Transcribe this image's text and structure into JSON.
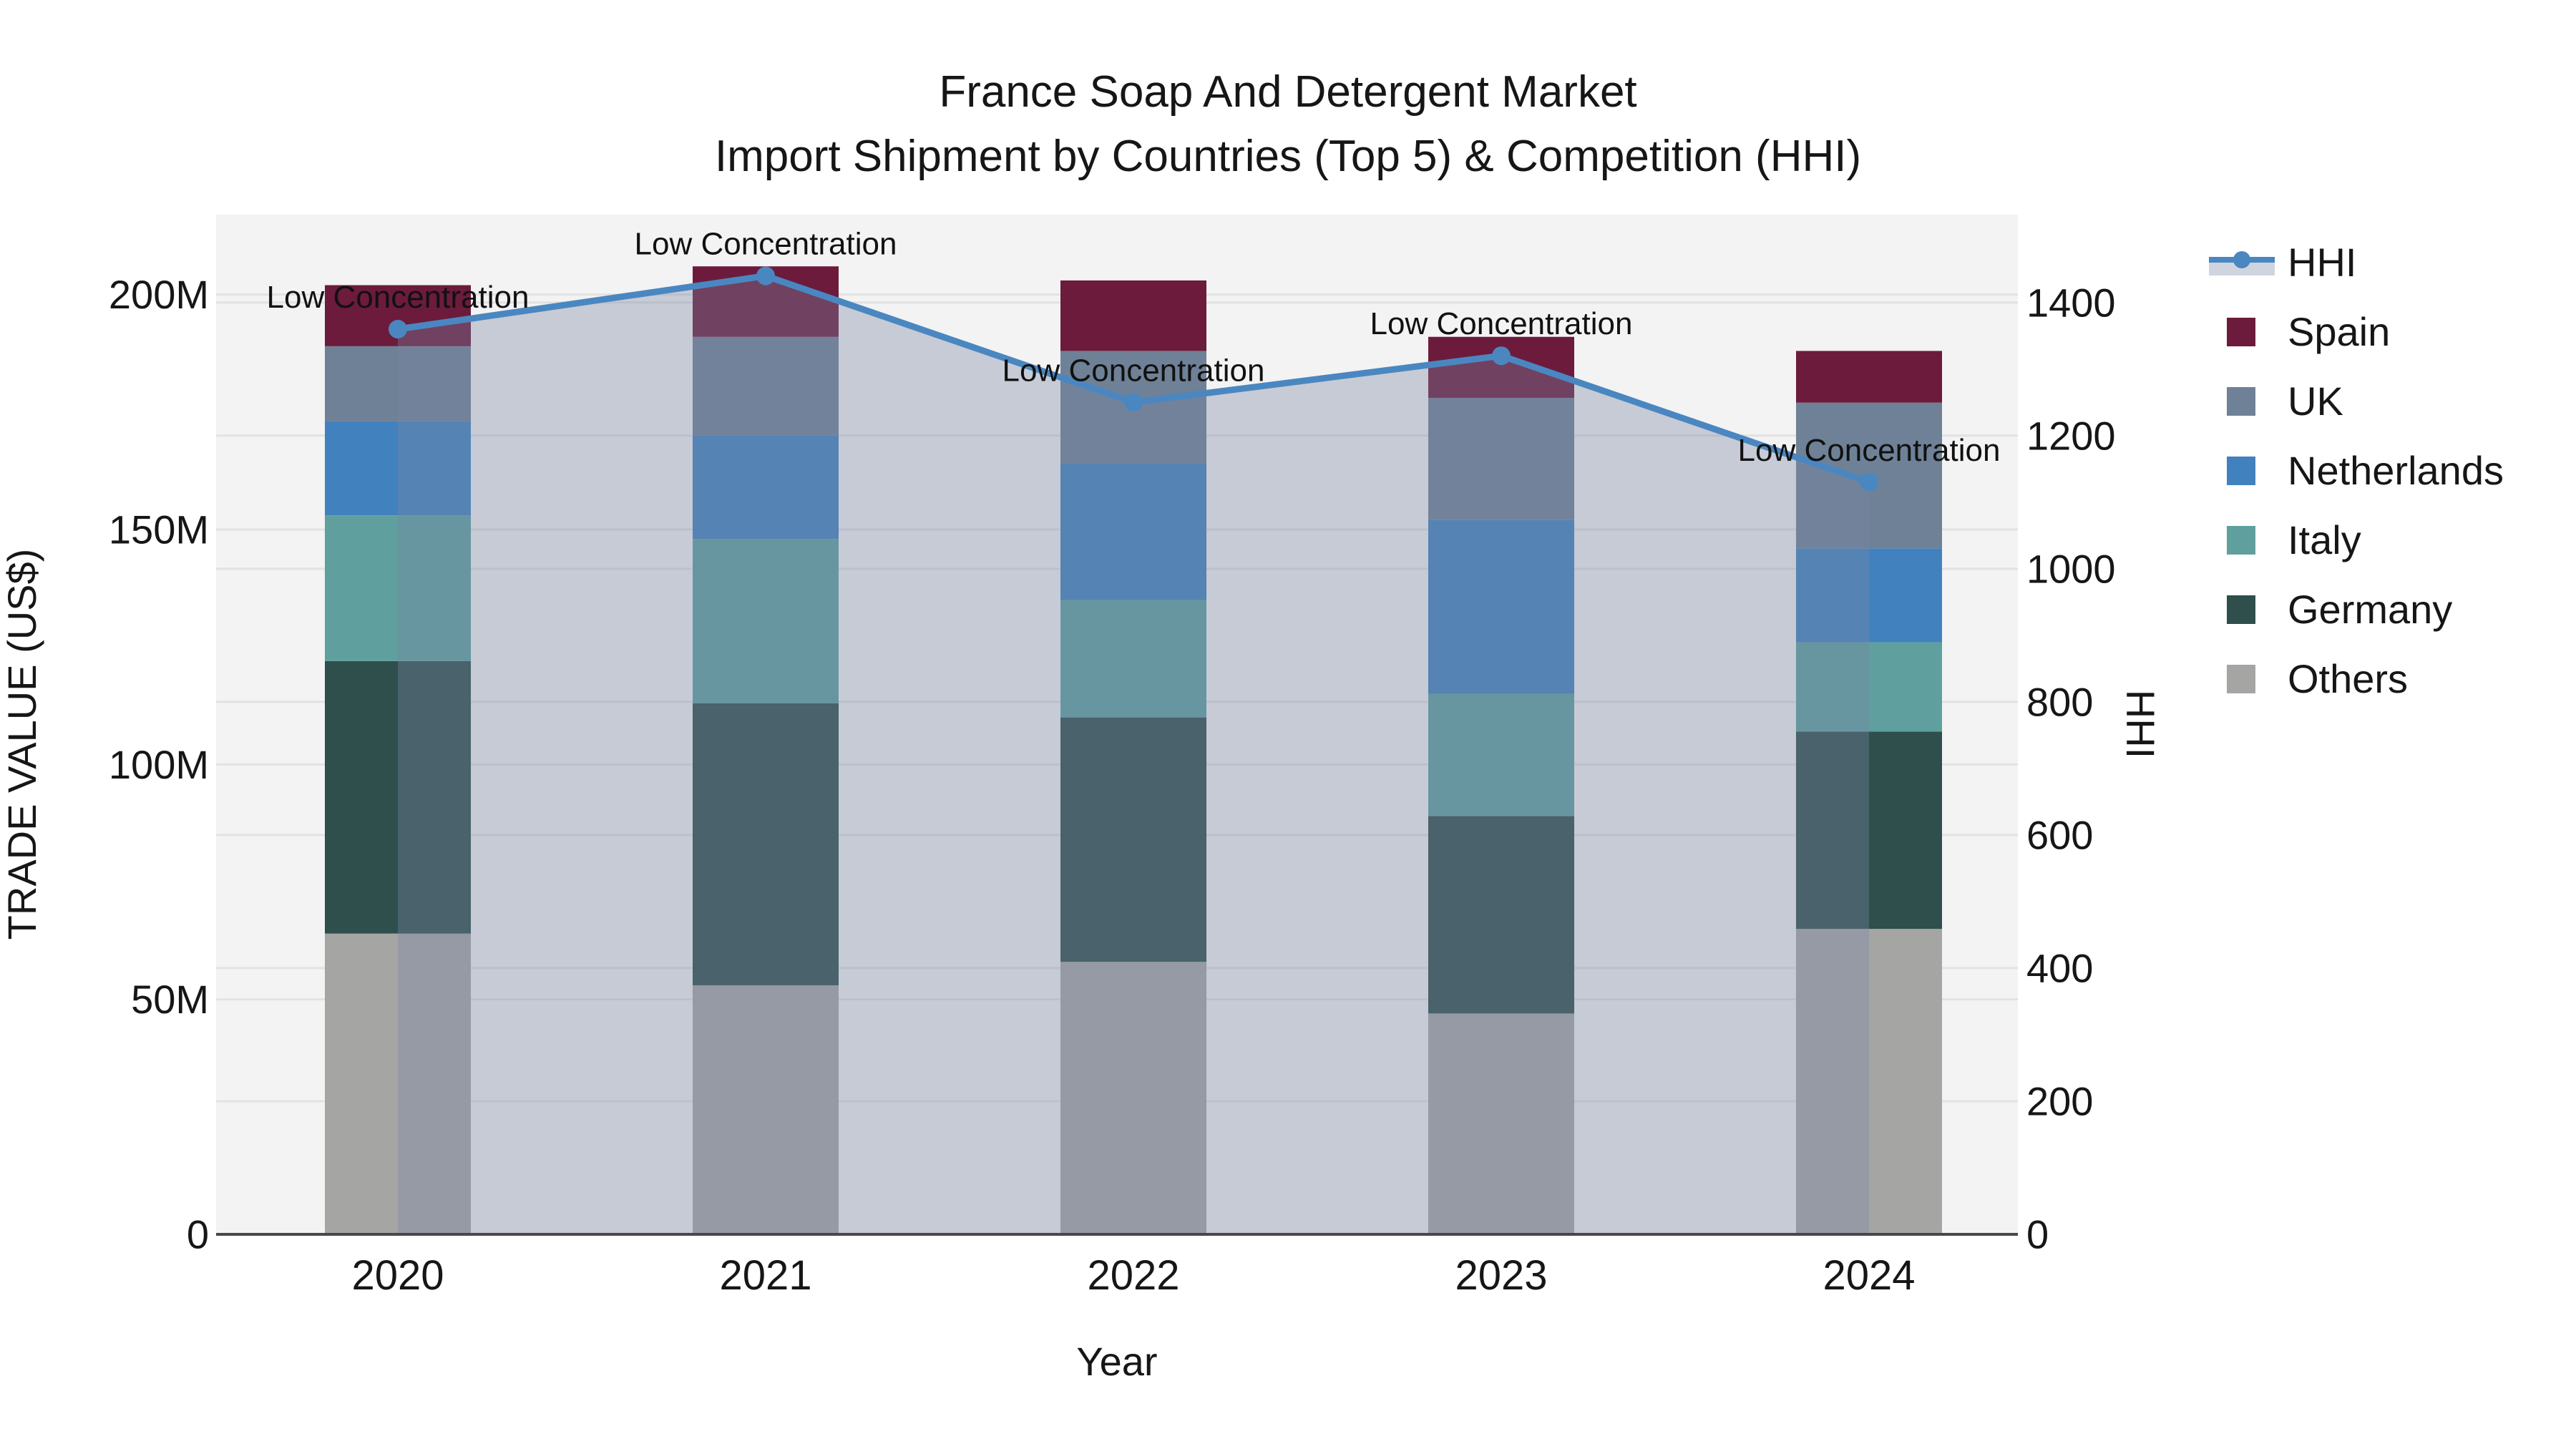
{
  "title": {
    "line1": "France Soap And Detergent Market",
    "line2": "Import Shipment by Countries (Top 5) & Competition (HHI)"
  },
  "axes": {
    "x": {
      "title": "Year",
      "tick_labels": [
        "2020",
        "2021",
        "2022",
        "2023",
        "2024"
      ]
    },
    "y_left": {
      "title": "TRADE VALUE (US$)",
      "tick_labels": [
        "0",
        "50M",
        "100M",
        "150M",
        "200M"
      ],
      "tick_values": [
        0,
        50,
        100,
        150,
        200
      ]
    },
    "y_right": {
      "title": "HHI",
      "tick_labels": [
        "0",
        "200",
        "400",
        "600",
        "800",
        "1000",
        "1200",
        "1400"
      ],
      "tick_values": [
        0,
        200,
        400,
        600,
        800,
        1000,
        1200,
        1400
      ]
    }
  },
  "legend": {
    "items": [
      {
        "label": "HHI",
        "type": "line",
        "color": "#4a87c1"
      },
      {
        "label": "Spain",
        "type": "swatch",
        "color": "#6c1b3c"
      },
      {
        "label": "UK",
        "type": "swatch",
        "color": "#6f8196"
      },
      {
        "label": "Netherlands",
        "type": "swatch",
        "color": "#4182be"
      },
      {
        "label": "Italy",
        "type": "swatch",
        "color": "#5fa09e"
      },
      {
        "label": "Germany",
        "type": "swatch",
        "color": "#2e4f4b"
      },
      {
        "label": "Others",
        "type": "swatch",
        "color": "#a5a6a4"
      }
    ]
  },
  "chart_data": {
    "type": "combo",
    "subtype": "stacked-bar + line-area",
    "x": [
      "2020",
      "2021",
      "2022",
      "2023",
      "2024"
    ],
    "bar_unit": "million US$ (trade value)",
    "bar_stack_order_bottom_to_top": [
      "Others",
      "Germany",
      "Italy",
      "Netherlands",
      "UK",
      "Spain"
    ],
    "bar_series": [
      {
        "name": "Others",
        "color": "#a5a6a4",
        "values": [
          64,
          53,
          58,
          47,
          65
        ]
      },
      {
        "name": "Germany",
        "color": "#2e4f4b",
        "values": [
          58,
          60,
          52,
          42,
          42
        ]
      },
      {
        "name": "Italy",
        "color": "#5fa09e",
        "values": [
          31,
          35,
          25,
          26,
          19
        ]
      },
      {
        "name": "Netherlands",
        "color": "#4182be",
        "values": [
          20,
          22,
          29,
          37,
          20
        ]
      },
      {
        "name": "UK",
        "color": "#6f8196",
        "values": [
          16,
          21,
          24,
          26,
          31
        ]
      },
      {
        "name": "Spain",
        "color": "#6c1b3c",
        "values": [
          13,
          15,
          15,
          13,
          11
        ]
      }
    ],
    "bar_totals": [
      202,
      206,
      203,
      191,
      188
    ],
    "line_series": {
      "name": "HHI",
      "axis": "right",
      "color": "#4a87c1",
      "area_fill": "rgba(121,132,164,0.36)",
      "values": [
        1360,
        1440,
        1250,
        1320,
        1130
      ]
    },
    "annotations": [
      {
        "x": "2020",
        "text": "Low Concentration"
      },
      {
        "x": "2021",
        "text": "Low Concentration"
      },
      {
        "x": "2022",
        "text": "Low Concentration"
      },
      {
        "x": "2023",
        "text": "Low Concentration"
      },
      {
        "x": "2024",
        "text": "Low Concentration"
      }
    ],
    "xlabel": "Year",
    "ylabel_left": "TRADE VALUE (US$)",
    "ylabel_right": "HHI",
    "ylim_left": [
      0,
      217
    ],
    "ylim_right": [
      0,
      1532
    ],
    "grid": true,
    "legend_position": "top-right"
  },
  "style_colors": {
    "plot_background": "#f3f3f3",
    "gridline": "#e2e2e2",
    "axis_line": "#484848",
    "text": "#161616"
  }
}
